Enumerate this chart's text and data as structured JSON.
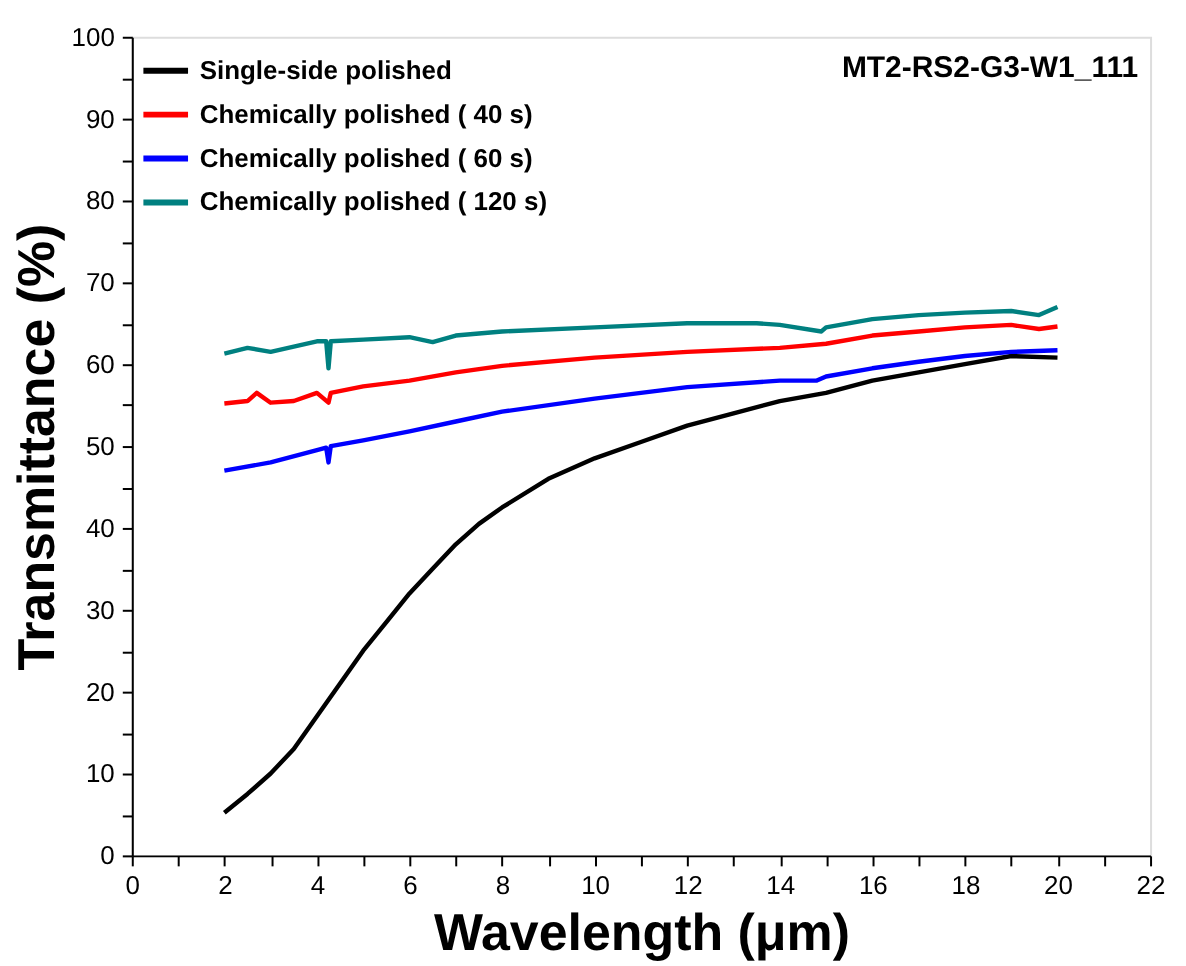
{
  "chart_data": {
    "type": "line",
    "xlabel": "Wavelength (μm)",
    "ylabel": "Transmittance (%)",
    "annotations": [
      "MT2-RS2-G3-W1_111"
    ],
    "xlim": [
      0,
      22
    ],
    "ylim": [
      0,
      100
    ],
    "xticks": [
      0,
      {
        "value": 1,
        "label": null
      },
      2,
      {
        "value": 3,
        "label": null
      },
      4,
      {
        "value": 5,
        "label": null
      },
      6,
      {
        "value": 7,
        "label": null
      },
      8,
      {
        "value": 9,
        "label": null
      },
      10,
      {
        "value": 11,
        "label": null
      },
      12,
      {
        "value": 13,
        "label": null
      },
      14,
      {
        "value": 15,
        "label": null
      },
      16,
      {
        "value": 17,
        "label": null
      },
      18,
      {
        "value": 19,
        "label": null
      },
      20,
      {
        "value": 21,
        "label": null
      },
      22
    ],
    "yticks": [
      0,
      {
        "value": 5,
        "label": null
      },
      10,
      {
        "value": 15,
        "label": null
      },
      20,
      {
        "value": 25,
        "label": null
      },
      30,
      {
        "value": 35,
        "label": null
      },
      40,
      {
        "value": 45,
        "label": null
      },
      50,
      {
        "value": 55,
        "label": null
      },
      60,
      {
        "value": 65,
        "label": null
      },
      70,
      {
        "value": 75,
        "label": null
      },
      80,
      {
        "value": 85,
        "label": null
      },
      90,
      {
        "value": 95,
        "label": null
      },
      100
    ],
    "grid": false,
    "legend": "top left",
    "marker": "none",
    "line_style": "solid",
    "series": [
      {
        "name": "Single-side polished",
        "color": "#000000",
        "x": [
          2,
          2.5,
          3,
          3.5,
          4,
          4.5,
          5,
          5.5,
          6,
          6.5,
          7,
          7.5,
          8,
          9,
          10,
          11,
          12,
          13,
          14,
          15,
          16,
          17,
          18,
          19,
          20
        ],
        "values": [
          5.2,
          7.5,
          10,
          13,
          17,
          21,
          25,
          28.5,
          32,
          35,
          38,
          40.5,
          42.5,
          46,
          48.5,
          50.5,
          52.5,
          54,
          55.5,
          56.5,
          58,
          59,
          60,
          61,
          60.8
        ]
      },
      {
        "name": "Chemically polished ( 40 s)",
        "color": "#ff0000",
        "x": [
          2,
          2.5,
          2.7,
          3,
          3.5,
          4,
          4.25,
          4.3,
          5,
          6,
          7,
          8,
          10,
          12,
          14,
          15,
          16,
          17,
          18,
          19,
          19.6,
          20
        ],
        "values": [
          55.2,
          55.5,
          56.5,
          55.3,
          55.5,
          56.5,
          55.3,
          56.5,
          57.3,
          58,
          59,
          59.8,
          60.8,
          61.5,
          62,
          62.5,
          63.5,
          64,
          64.5,
          64.8,
          64.3,
          64.6
        ]
      },
      {
        "name": "Chemically polished ( 60 s)",
        "color": "#0000ff",
        "x": [
          2,
          3,
          4,
          4.2,
          4.25,
          4.3,
          5,
          6,
          7,
          8,
          10,
          12,
          14,
          14.8,
          15,
          16,
          17,
          18,
          19,
          20
        ],
        "values": [
          47,
          48,
          49.5,
          49.8,
          48,
          50,
          50.7,
          51.8,
          53,
          54.2,
          55.8,
          57.2,
          58,
          58,
          58.5,
          59.5,
          60.3,
          61,
          61.5,
          61.7
        ]
      },
      {
        "name": "Chemically polished ( 120 s)",
        "color": "#008080",
        "x": [
          2,
          2.5,
          3,
          4,
          4.2,
          4.25,
          4.3,
          5,
          6,
          6.5,
          7,
          8,
          10,
          12,
          13.5,
          14,
          14.9,
          15,
          16,
          17,
          18,
          19,
          19.6,
          20
        ],
        "values": [
          61.3,
          62,
          61.5,
          62.8,
          62.8,
          59.5,
          62.8,
          63,
          63.3,
          62.7,
          63.5,
          64,
          64.5,
          65,
          65,
          64.8,
          64,
          64.5,
          65.5,
          66,
          66.3,
          66.5,
          66,
          67
        ]
      }
    ]
  }
}
